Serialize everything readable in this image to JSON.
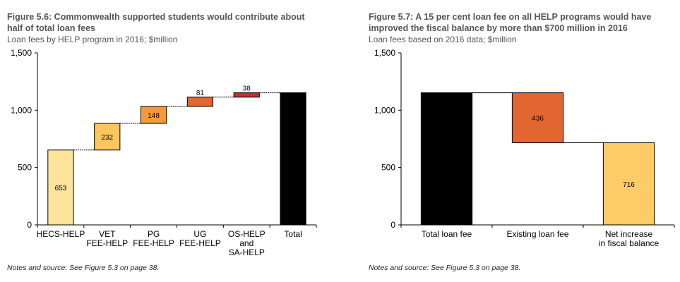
{
  "colors": {
    "pale_yellow": "#fde39b",
    "light_orange": "#fbc65c",
    "mid_orange": "#f39a3a",
    "orange_red": "#e2662f",
    "dark_red": "#c0332b",
    "black": "#000000",
    "net_yellow": "#fdcc66"
  },
  "left": {
    "title": "Figure 5.6: Commonwealth supported students would contribute about half of total loan fees",
    "subtitle": "Loan fees by HELP program in 2016; $million",
    "note": "Notes and source: See Figure 5.3 on page 38."
  },
  "right": {
    "title": "Figure 5.7: A 15 per cent loan fee on all HELP programs would have improved the fiscal balance by more than $700 million in 2016",
    "subtitle": "Loan fees based on 2016 data; $million",
    "note": "Notes and source: See Figure 5.3 on page 38."
  },
  "chart_data": [
    {
      "type": "bar",
      "subtype": "waterfall",
      "title": "Commonwealth supported students would contribute about half of total loan fees",
      "ylabel": "$million",
      "ylim": [
        0,
        1500
      ],
      "yticks": [
        "0",
        "500",
        "1,000",
        "1,500"
      ],
      "categories": [
        "HECS-HELP",
        "VET FEE-HELP",
        "PG FEE-HELP",
        "UG FEE-HELP",
        "OS-HELP and SA-HELP",
        "Total"
      ],
      "category_lines": [
        [
          "HECS-HELP"
        ],
        [
          "VET",
          "FEE-HELP"
        ],
        [
          "PG",
          "FEE-HELP"
        ],
        [
          "UG",
          "FEE-HELP"
        ],
        [
          "OS-HELP",
          "and",
          "SA-HELP"
        ],
        [
          "Total"
        ]
      ],
      "values": [
        653,
        232,
        148,
        81,
        38,
        1152
      ],
      "bases": [
        0,
        653,
        885,
        1033,
        1114,
        0
      ],
      "labels": [
        "653",
        "232",
        "148",
        "81",
        "38",
        ""
      ],
      "colors": [
        "#fde39b",
        "#fbc65c",
        "#f39a3a",
        "#e2662f",
        "#c0332b",
        "#000000"
      ]
    },
    {
      "type": "bar",
      "subtype": "waterfall",
      "title": "A 15 per cent loan fee on all HELP programs would have improved the fiscal balance by more than $700 million in 2016",
      "ylabel": "$million",
      "ylim": [
        0,
        1500
      ],
      "yticks": [
        "0",
        "500",
        "1,000",
        "1,500"
      ],
      "categories": [
        "Total loan fee",
        "Existing loan fee",
        "Net increase in fiscal balance"
      ],
      "category_lines": [
        [
          "Total loan fee"
        ],
        [
          "Existing loan fee"
        ],
        [
          "Net increase",
          "in fiscal balance"
        ]
      ],
      "values": [
        1152,
        436,
        716
      ],
      "bases": [
        0,
        716,
        0
      ],
      "labels": [
        "",
        "436",
        "716"
      ],
      "colors": [
        "#000000",
        "#e2662f",
        "#fdcc66"
      ]
    }
  ]
}
